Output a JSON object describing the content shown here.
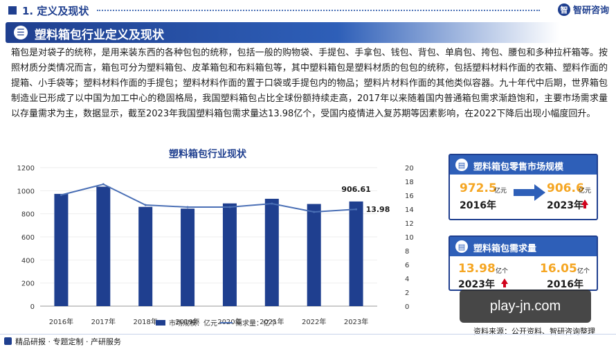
{
  "header": {
    "section_title": "1. 定义及现状",
    "logo_text": "智研咨询",
    "logo_icon": "zhiyan-logo-icon"
  },
  "banner": {
    "title": "塑料箱包行业定义及现状",
    "icon": "list-icon"
  },
  "paragraph": "箱包是对袋子的统称，是用来装东西的各种包包的统称，包括一般的购物袋、手提包、手拿包、钱包、背包、单肩包、挎包、腰包和多种拉杆箱等。按照材质分类情况而言，箱包可分为塑料箱包、皮革箱包和布料箱包等，其中塑料箱包是塑料材质的包包的统称，包括塑料材料作面的衣箱、塑料作面的提箱、小手袋等；塑料材料作面的手提包；塑料材料作面的置于口袋或手提包内的物品；塑料片材料作面的其他类似容器。九十年代中后期，世界箱包制造业已形成了以中国为加工中心的稳固格局，我国塑料箱包占比全球份额持续走高，2017年以来随着国内普通箱包需求渐趋饱和，主要市场需求量以存量需求为主，数据显示，截至2023年我国塑料箱包需求量达13.98亿个，受国内疫情进入复苏期等因素影响，在2022下降后出现小幅度回升。",
  "chart_data": {
    "type": "bar",
    "title": "塑料箱包行业现状",
    "categories": [
      "2016年",
      "2017年",
      "2018年",
      "2019年",
      "2020年",
      "2021年",
      "2022年",
      "2023年"
    ],
    "series": [
      {
        "name": "市场规模：亿元",
        "type": "bar",
        "axis": "left",
        "values": [
          972.5,
          1035,
          860,
          845,
          890,
          930,
          885,
          906.61
        ],
        "color": "#1f3f8f"
      },
      {
        "name": "需求量：亿个",
        "type": "line",
        "axis": "right",
        "values": [
          16.05,
          17.6,
          14.6,
          14.3,
          14.3,
          14.8,
          13.6,
          13.98
        ],
        "color": "#4a6fb5"
      }
    ],
    "ylim_left": [
      0,
      1200
    ],
    "yticks_left": [
      "0",
      "200",
      "400",
      "600",
      "800",
      "1000",
      "1200"
    ],
    "ylim_right": [
      0,
      20
    ],
    "yticks_right": [
      "0",
      "2",
      "4",
      "6",
      "8",
      "10",
      "12",
      "14",
      "16",
      "18",
      "20"
    ],
    "annotations": [
      {
        "text": "906.61",
        "series": 0,
        "index": 7
      },
      {
        "text": "13.98",
        "series": 1,
        "index": 7
      }
    ],
    "legend_position": "bottom"
  },
  "card_market": {
    "title": "塑料箱包零售市场规模",
    "icon": "chart-icon",
    "from_value": "972.5",
    "from_unit": "亿元",
    "from_year": "2016年",
    "to_value": "906.6",
    "to_unit": "亿元",
    "to_year": "2023年"
  },
  "card_demand": {
    "title": "塑料箱包需求量",
    "icon": "chart-icon",
    "left_value": "13.98",
    "left_unit": "亿个",
    "left_year": "2023年",
    "right_value": "16.05",
    "right_unit": "亿个",
    "right_year": "2016年"
  },
  "source": "资料来源：公开资料、智研咨询整理",
  "watermark": "play-jn.com",
  "footer": "精品研报 · 专题定制 · 产研服务",
  "colors": {
    "brand": "#1f3f8f",
    "accent": "#f5a623",
    "up": "#d0021b"
  }
}
